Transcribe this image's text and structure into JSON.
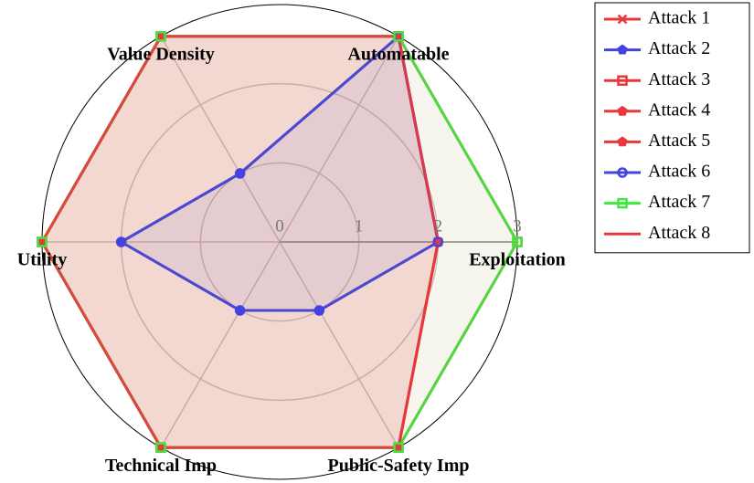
{
  "chart_data": {
    "type": "radar",
    "categories": [
      "Exploitation",
      "Automatable",
      "Value Density",
      "Utility",
      "Technical Imp",
      "Public-Safety Imp"
    ],
    "rlim": [
      0,
      3
    ],
    "rticks": [
      0,
      1,
      2,
      3
    ],
    "grid": true,
    "filled": true,
    "legend": "upper right",
    "series": [
      {
        "name": "Attack 1",
        "color": "#e8383d",
        "marker": "x",
        "values": [
          2,
          3,
          3,
          3,
          3,
          3
        ]
      },
      {
        "name": "Attack 2",
        "color": "#4343e0",
        "marker": "pentagon",
        "values": [
          2,
          3,
          1,
          2,
          1,
          1
        ]
      },
      {
        "name": "Attack 3",
        "color": "#e8383d",
        "marker": "square",
        "values": [
          3,
          3,
          3,
          3,
          3,
          3
        ]
      },
      {
        "name": "Attack 4",
        "color": "#e8383d",
        "marker": "pentagon",
        "values": [
          2,
          3,
          3,
          3,
          3,
          3
        ]
      },
      {
        "name": "Attack 5",
        "color": "#e8383d",
        "marker": "pentagon",
        "values": [
          2,
          3,
          3,
          3,
          3,
          3
        ]
      },
      {
        "name": "Attack 6",
        "color": "#4343e0",
        "marker": "circle",
        "values": [
          2,
          3,
          1,
          2,
          1,
          1
        ]
      },
      {
        "name": "Attack 7",
        "color": "#3ee83e",
        "marker": "square",
        "values": [
          3,
          3,
          3,
          3,
          3,
          3
        ]
      },
      {
        "name": "Attack 8",
        "color": "#e8383d",
        "values": [
          2,
          3,
          3,
          3,
          3,
          3
        ]
      }
    ]
  }
}
